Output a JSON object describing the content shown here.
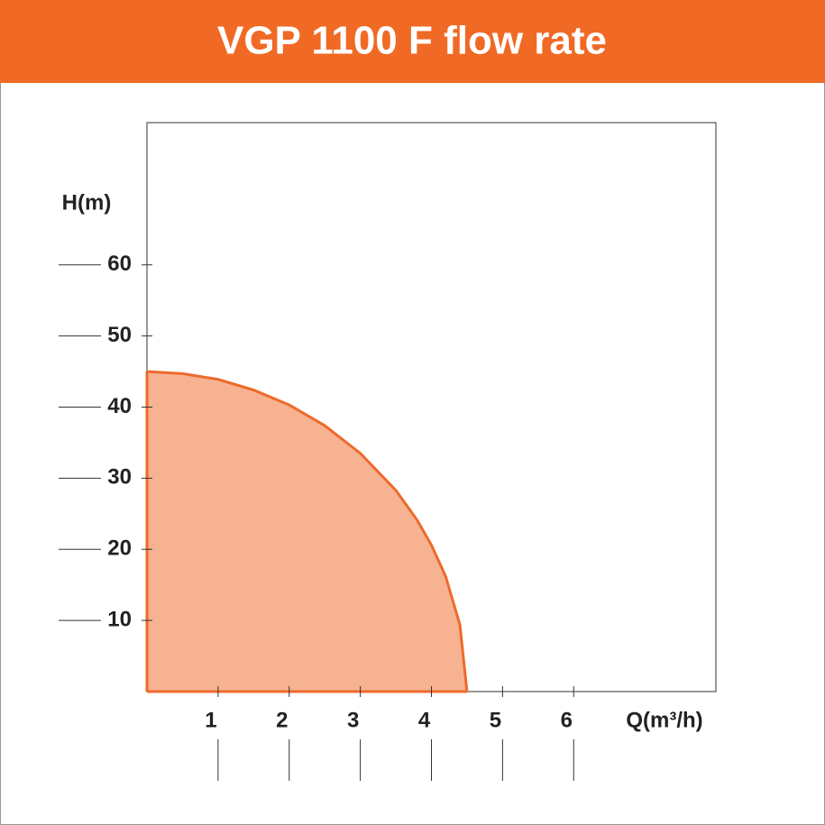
{
  "chart_data": {
    "type": "area",
    "title": "VGP 1100 F flow rate",
    "x_label": "Q(m³/h)",
    "y_label": "H(m)",
    "series": [
      {
        "color": "#ee6a2a",
        "fill": "#f7b292",
        "x": [
          0,
          0.5,
          1,
          1.5,
          2,
          2.5,
          3,
          3.5,
          3.8,
          4,
          4.2,
          4.4,
          4.5
        ],
        "values": [
          45,
          44.7,
          43.9,
          42.4,
          40.3,
          37.4,
          33.5,
          28.3,
          24.1,
          20.6,
          16.2,
          9.4,
          0
        ]
      }
    ],
    "xlim": [
      0,
      8
    ],
    "ylim": [
      0,
      80
    ],
    "xticks": [
      1,
      2,
      3,
      4,
      5,
      6
    ],
    "yticks": [
      10,
      20,
      30,
      40,
      50,
      60
    ]
  }
}
